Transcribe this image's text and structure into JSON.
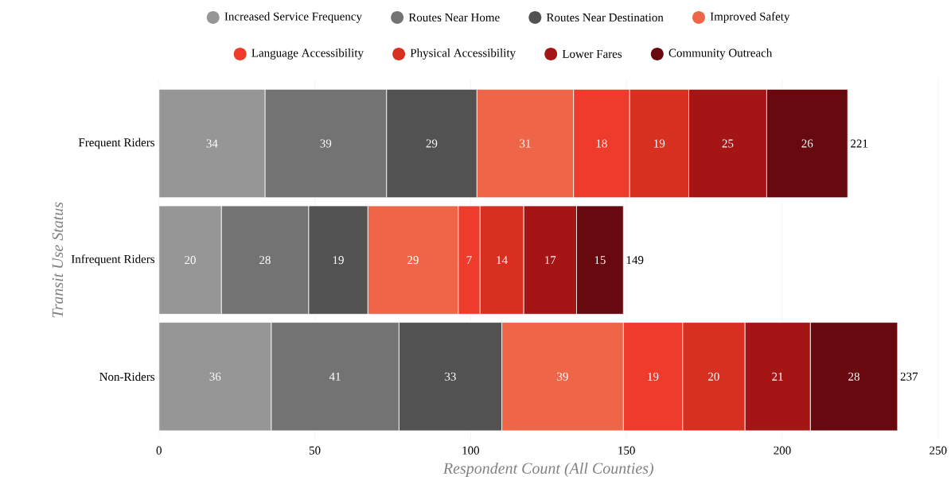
{
  "chart_data": {
    "type": "bar",
    "orientation": "horizontal",
    "stacked": true,
    "xlabel": "Respondent Count (All Counties)",
    "ylabel": "Transit Use Status",
    "categories": [
      "Frequent Riders",
      "Infrequent Riders",
      "Non-Riders"
    ],
    "series": [
      {
        "name": "Increased Service Frequency",
        "color": "#969696",
        "values": [
          34,
          20,
          36
        ]
      },
      {
        "name": "Routes Near Home",
        "color": "#737373",
        "values": [
          39,
          28,
          41
        ]
      },
      {
        "name": "Routes Near Destination",
        "color": "#525252",
        "values": [
          29,
          19,
          33
        ]
      },
      {
        "name": "Improved Safety",
        "color": "#ef6548",
        "values": [
          31,
          29,
          39
        ]
      },
      {
        "name": "Language Accessibility",
        "color": "#ef3b2c",
        "values": [
          18,
          7,
          19
        ]
      },
      {
        "name": "Physical Accessibility",
        "color": "#d73020",
        "values": [
          19,
          14,
          20
        ]
      },
      {
        "name": "Lower Fares",
        "color": "#a51515",
        "values": [
          25,
          17,
          21
        ]
      },
      {
        "name": "Community Outreach",
        "color": "#67090f",
        "values": [
          26,
          15,
          28
        ]
      }
    ],
    "totals": [
      "221",
      "149",
      "237"
    ],
    "data_labels": true,
    "xlim": [
      0,
      250
    ],
    "xticks": [
      0,
      50,
      100,
      150,
      200,
      250
    ],
    "grid": "x",
    "legend": "top"
  }
}
